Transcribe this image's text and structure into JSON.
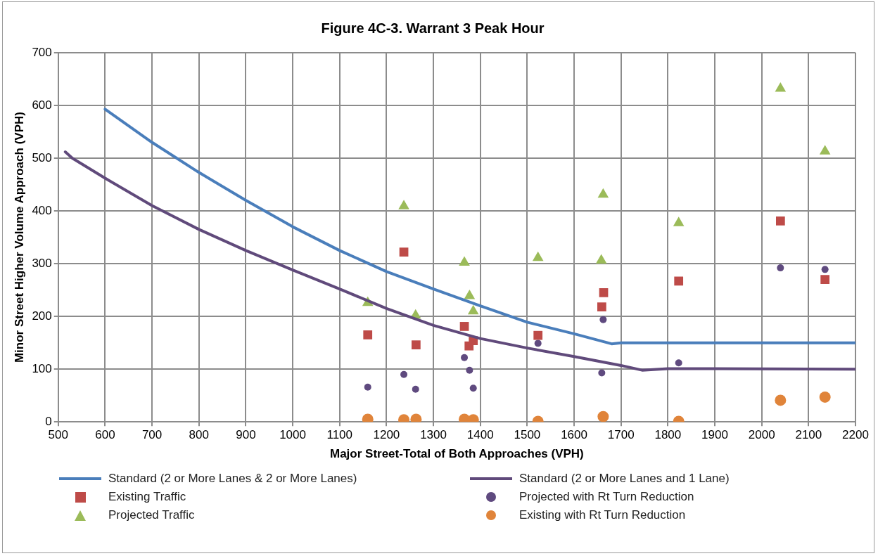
{
  "chart_data": {
    "type": "scatter",
    "title": "Figure 4C-3. Warrant 3 Peak Hour",
    "xlabel": "Major Street-Total of Both Approaches (VPH)",
    "ylabel": "Minor Street Higher Volume Approach (VPH)",
    "xlim": [
      500,
      2200
    ],
    "xticks": [
      500,
      600,
      700,
      800,
      900,
      1000,
      1100,
      1200,
      1300,
      1400,
      1500,
      1600,
      1700,
      1800,
      1900,
      2000,
      2100,
      2200
    ],
    "ylim": [
      0,
      700
    ],
    "yticks": [
      0,
      100,
      200,
      300,
      400,
      500,
      600,
      700
    ],
    "grid": true,
    "legend": "bottom",
    "series": [
      {
        "name": "Standard (2 or More Lanes & 2 or More Lanes)",
        "type": "line",
        "marker": "none",
        "color": "#4a7ebb",
        "x": [
          600,
          700,
          800,
          900,
          1000,
          1100,
          1200,
          1300,
          1400,
          1500,
          1600,
          1680,
          1700,
          2200
        ],
        "values": [
          593,
          530,
          473,
          420,
          370,
          325,
          285,
          252,
          220,
          189,
          167,
          148,
          150,
          150
        ]
      },
      {
        "name": "Standard (2 or More Lanes and 1 Lane)",
        "type": "line",
        "marker": "none",
        "color": "#604a7b",
        "x": [
          515,
          530,
          600,
          700,
          800,
          900,
          1000,
          1100,
          1200,
          1300,
          1400,
          1500,
          1600,
          1700,
          1745,
          1800,
          2200
        ],
        "values": [
          512,
          500,
          462,
          410,
          365,
          325,
          288,
          252,
          215,
          183,
          158,
          140,
          124,
          107,
          98,
          101,
          100
        ]
      },
      {
        "name": "Existing Traffic",
        "type": "scatter",
        "marker": "square",
        "color": "#be4b48",
        "x": [
          1160,
          1237,
          1263,
          1366,
          1376,
          1385,
          1523,
          1659,
          1663,
          1823,
          2040,
          2135
        ],
        "values": [
          165,
          322,
          146,
          181,
          144,
          154,
          164,
          218,
          245,
          267,
          381,
          270
        ]
      },
      {
        "name": "Projected with Rt Turn Reduction",
        "type": "scatter",
        "marker": "circle",
        "color": "#5f4a7f",
        "x": [
          1160,
          1237,
          1262,
          1366,
          1377,
          1385,
          1523,
          1659,
          1662,
          1823,
          2040,
          2135
        ],
        "values": [
          66,
          90,
          62,
          122,
          98,
          64,
          149,
          93,
          194,
          112,
          292,
          289
        ]
      },
      {
        "name": "Projected Traffic",
        "type": "scatter",
        "marker": "triangle",
        "color": "#9bbb59",
        "x": [
          1160,
          1237,
          1262,
          1366,
          1377,
          1385,
          1523,
          1658,
          1662,
          1823,
          2040,
          2135
        ],
        "values": [
          226,
          409,
          202,
          302,
          239,
          210,
          311,
          306,
          431,
          377,
          632,
          513
        ]
      },
      {
        "name": "Existing with Rt Turn Reduction",
        "type": "scatter",
        "marker": "circle",
        "color": "#e0843a",
        "x": [
          1160,
          1237,
          1263,
          1366,
          1377,
          1385,
          1523,
          1657,
          1662,
          1823,
          2040,
          2135
        ],
        "values": [
          5,
          4,
          5,
          5,
          null,
          4,
          1,
          null,
          10,
          1,
          41,
          47
        ]
      }
    ]
  }
}
